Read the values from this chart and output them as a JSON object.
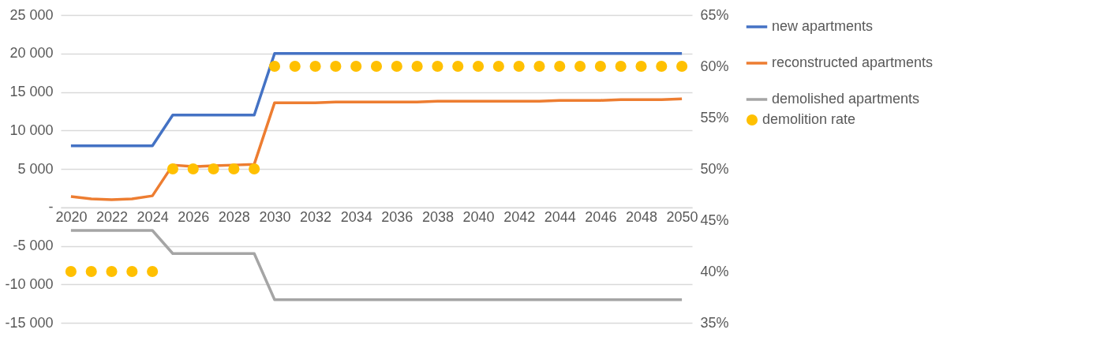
{
  "chart_data": {
    "type": "line",
    "x": [
      2020,
      2021,
      2022,
      2023,
      2024,
      2025,
      2026,
      2027,
      2028,
      2029,
      2030,
      2031,
      2032,
      2033,
      2034,
      2035,
      2036,
      2037,
      2038,
      2039,
      2040,
      2041,
      2042,
      2043,
      2044,
      2045,
      2046,
      2047,
      2048,
      2049,
      2050
    ],
    "series": [
      {
        "name": "new apartments",
        "color": "#4472c4",
        "values": [
          8000,
          8000,
          8000,
          8000,
          8000,
          12000,
          12000,
          12000,
          12000,
          12000,
          20000,
          20000,
          20000,
          20000,
          20000,
          20000,
          20000,
          20000,
          20000,
          20000,
          20000,
          20000,
          20000,
          20000,
          20000,
          20000,
          20000,
          20000,
          20000,
          20000,
          20000
        ]
      },
      {
        "name": "reconstructed apartments",
        "color": "#ed7d31",
        "values": [
          1400,
          1100,
          1000,
          1100,
          1500,
          5500,
          5300,
          5400,
          5500,
          5600,
          13600,
          13600,
          13600,
          13700,
          13700,
          13700,
          13700,
          13700,
          13800,
          13800,
          13800,
          13800,
          13800,
          13800,
          13900,
          13900,
          13900,
          14000,
          14000,
          14000,
          14100
        ]
      },
      {
        "name": "demolished apartments",
        "color": "#a5a5a5",
        "values": [
          -3000,
          -3000,
          -3000,
          -3000,
          -3000,
          -6000,
          -6000,
          -6000,
          -6000,
          -6000,
          -12000,
          -12000,
          -12000,
          -12000,
          -12000,
          -12000,
          -12000,
          -12000,
          -12000,
          -12000,
          -12000,
          -12000,
          -12000,
          -12000,
          -12000,
          -12000,
          -12000,
          -12000,
          -12000,
          -12000,
          -12000
        ]
      },
      {
        "name": "demolition rate",
        "color": "#ffc000",
        "type": "scatter",
        "axis": "y2",
        "marker": "circle",
        "values": [
          40,
          40,
          40,
          40,
          40,
          50,
          50,
          50,
          50,
          50,
          60,
          60,
          60,
          60,
          60,
          60,
          60,
          60,
          60,
          60,
          60,
          60,
          60,
          60,
          60,
          60,
          60,
          60,
          60,
          60,
          60
        ]
      }
    ],
    "xlim": [
      2019.5,
      2050.5
    ],
    "xticks": [
      2020,
      2022,
      2024,
      2026,
      2028,
      2030,
      2032,
      2034,
      2036,
      2038,
      2040,
      2042,
      2044,
      2046,
      2048,
      2050
    ],
    "ylim": [
      -15000,
      25000
    ],
    "yticks": [
      {
        "value": -15000,
        "label": "-15 000"
      },
      {
        "value": -10000,
        "label": "-10 000"
      },
      {
        "value": -5000,
        "label": "-5 000"
      },
      {
        "value": 0,
        "label": "-"
      },
      {
        "value": 5000,
        "label": "5 000"
      },
      {
        "value": 10000,
        "label": "10 000"
      },
      {
        "value": 15000,
        "label": "15 000"
      },
      {
        "value": 20000,
        "label": "20 000"
      },
      {
        "value": 25000,
        "label": "25 000"
      }
    ],
    "y2lim": [
      35,
      65
    ],
    "y2ticks": [
      {
        "value": 35,
        "label": "35%"
      },
      {
        "value": 40,
        "label": "40%"
      },
      {
        "value": 45,
        "label": "45%"
      },
      {
        "value": 50,
        "label": "50%"
      },
      {
        "value": 55,
        "label": "55%"
      },
      {
        "value": 60,
        "label": "60%"
      },
      {
        "value": 65,
        "label": "65%"
      }
    ],
    "grid": "y",
    "legend": "right",
    "line_style": "solid"
  }
}
